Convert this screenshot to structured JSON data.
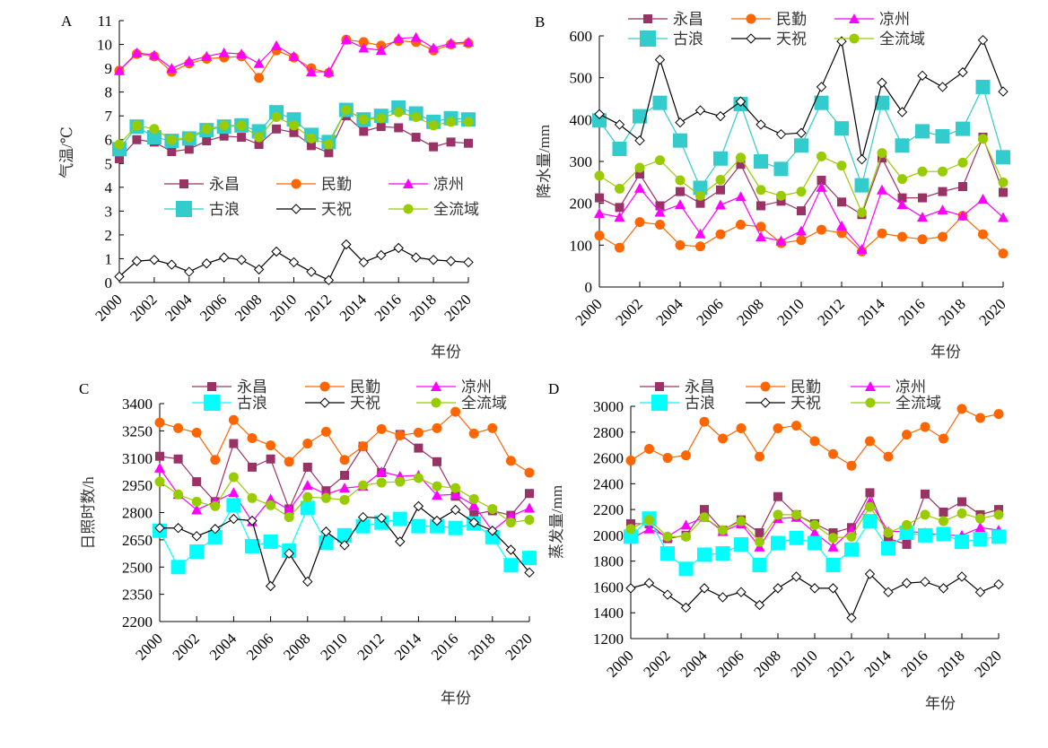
{
  "chart_data": [
    {
      "type": "line",
      "panel": "A",
      "title": "",
      "xlabel": "年份",
      "ylabel": "气温/℃",
      "ylim": [
        0,
        11
      ],
      "yticks": [
        0,
        1,
        2,
        3,
        4,
        5,
        6,
        7,
        8,
        9,
        10,
        11
      ],
      "x": [
        2000,
        2001,
        2002,
        2003,
        2004,
        2005,
        2006,
        2007,
        2008,
        2009,
        2010,
        2011,
        2012,
        2013,
        2014,
        2015,
        2016,
        2017,
        2018,
        2019,
        2020
      ],
      "xticks": [
        2000,
        2002,
        2004,
        2006,
        2008,
        2010,
        2012,
        2014,
        2016,
        2018,
        2020
      ],
      "legend": "center",
      "grid": false,
      "series": [
        {
          "name": "永昌",
          "values": [
            5.2,
            6.0,
            5.9,
            5.5,
            5.6,
            5.95,
            6.15,
            6.1,
            5.8,
            6.45,
            6.3,
            5.75,
            5.45,
            7.0,
            6.35,
            6.55,
            6.5,
            6.1,
            5.7,
            5.9,
            5.85
          ]
        },
        {
          "name": "民勤",
          "values": [
            8.9,
            9.6,
            9.5,
            8.85,
            9.2,
            9.4,
            9.45,
            9.5,
            8.6,
            9.75,
            9.45,
            9.0,
            8.8,
            10.2,
            10.1,
            9.95,
            10.15,
            10.1,
            9.75,
            10.0,
            10.05
          ]
        },
        {
          "name": "凉州",
          "values": [
            8.9,
            9.65,
            9.55,
            9.0,
            9.3,
            9.5,
            9.65,
            9.6,
            9.2,
            9.95,
            9.5,
            8.85,
            8.85,
            10.2,
            9.85,
            9.75,
            10.25,
            10.3,
            9.85,
            10.05,
            10.1
          ]
        },
        {
          "name": "古浪",
          "values": [
            5.6,
            6.55,
            6.1,
            5.95,
            6.05,
            6.4,
            6.55,
            6.6,
            6.35,
            7.15,
            6.85,
            6.2,
            5.9,
            7.25,
            6.85,
            7.0,
            7.35,
            7.1,
            6.75,
            6.9,
            6.85
          ]
        },
        {
          "name": "天祝",
          "values": [
            0.25,
            0.9,
            0.95,
            0.75,
            0.45,
            0.8,
            1.05,
            0.95,
            0.55,
            1.3,
            0.85,
            0.45,
            0.1,
            1.6,
            0.85,
            1.15,
            1.45,
            1.05,
            0.95,
            0.9,
            0.85
          ]
        },
        {
          "name": "全流域",
          "values": [
            5.8,
            6.6,
            6.45,
            6.0,
            6.1,
            6.45,
            6.6,
            6.6,
            6.1,
            6.95,
            6.6,
            6.05,
            5.8,
            7.25,
            6.85,
            6.9,
            7.15,
            6.95,
            6.6,
            6.75,
            6.75
          ]
        }
      ]
    },
    {
      "type": "line",
      "panel": "B",
      "title": "",
      "xlabel": "年份",
      "ylabel": "降水量/mm",
      "ylim": [
        0,
        600
      ],
      "yticks": [
        0,
        100,
        200,
        300,
        400,
        500,
        600
      ],
      "x": [
        2000,
        2001,
        2002,
        2003,
        2004,
        2005,
        2006,
        2007,
        2008,
        2009,
        2010,
        2011,
        2012,
        2013,
        2014,
        2015,
        2016,
        2017,
        2018,
        2019,
        2020
      ],
      "xticks": [
        2000,
        2002,
        2004,
        2006,
        2008,
        2010,
        2012,
        2014,
        2016,
        2018,
        2020
      ],
      "legend": "top",
      "grid": false,
      "series": [
        {
          "name": "永昌",
          "values": [
            213,
            190,
            270,
            194,
            228,
            200,
            232,
            293,
            194,
            205,
            182,
            255,
            203,
            173,
            308,
            213,
            213,
            228,
            240,
            358,
            226
          ]
        },
        {
          "name": "民勤",
          "values": [
            123,
            94,
            155,
            149,
            100,
            97,
            126,
            149,
            144,
            105,
            112,
            137,
            129,
            85,
            128,
            120,
            114,
            120,
            170,
            126,
            80
          ]
        },
        {
          "name": "凉州",
          "values": [
            176,
            167,
            236,
            179,
            197,
            127,
            196,
            216,
            120,
            110,
            134,
            238,
            146,
            90,
            232,
            197,
            167,
            184,
            170,
            210,
            166
          ]
        },
        {
          "name": "古浪",
          "values": [
            398,
            330,
            408,
            440,
            350,
            237,
            307,
            437,
            300,
            282,
            338,
            440,
            379,
            243,
            440,
            338,
            372,
            360,
            378,
            478,
            310
          ]
        },
        {
          "name": "天祝",
          "values": [
            413,
            388,
            350,
            543,
            393,
            422,
            408,
            443,
            388,
            365,
            368,
            478,
            587,
            305,
            488,
            418,
            505,
            478,
            513,
            590,
            467
          ]
        },
        {
          "name": "全流域",
          "values": [
            266,
            235,
            285,
            303,
            255,
            218,
            256,
            309,
            232,
            218,
            228,
            312,
            290,
            178,
            320,
            258,
            276,
            276,
            297,
            354,
            250
          ]
        }
      ]
    },
    {
      "type": "line",
      "panel": "C",
      "title": "",
      "xlabel": "年份",
      "ylabel": "日照时数/h",
      "ylim": [
        2200,
        3400
      ],
      "yticks": [
        2200,
        2350,
        2500,
        2650,
        2800,
        2950,
        3100,
        3250,
        3400
      ],
      "x": [
        2000,
        2001,
        2002,
        2003,
        2004,
        2005,
        2006,
        2007,
        2008,
        2009,
        2010,
        2011,
        2012,
        2013,
        2014,
        2015,
        2016,
        2017,
        2018,
        2019,
        2020
      ],
      "xticks": [
        2000,
        2002,
        2004,
        2006,
        2008,
        2010,
        2012,
        2014,
        2016,
        2018,
        2020
      ],
      "legend": "top",
      "grid": false,
      "series": [
        {
          "name": "永昌",
          "values": [
            3110,
            3095,
            2970,
            2860,
            3180,
            3050,
            3095,
            2820,
            3050,
            2920,
            3005,
            3165,
            3020,
            3230,
            3155,
            3080,
            2890,
            2790,
            2810,
            2785,
            2905
          ]
        },
        {
          "name": "民勤",
          "values": [
            3295,
            3265,
            3240,
            3090,
            3310,
            3210,
            3170,
            3080,
            3180,
            3245,
            3090,
            3165,
            3260,
            3225,
            3240,
            3265,
            3355,
            3235,
            3265,
            3085,
            3020
          ]
        },
        {
          "name": "凉州",
          "values": [
            3045,
            2900,
            2815,
            2860,
            2910,
            2750,
            2875,
            2815,
            2950,
            2900,
            2935,
            2945,
            3025,
            3000,
            3005,
            2895,
            2900,
            2840,
            2700,
            2780,
            2825
          ]
        },
        {
          "name": "古浪",
          "values": [
            2700,
            2500,
            2585,
            2665,
            2840,
            2615,
            2640,
            2590,
            2825,
            2635,
            2675,
            2725,
            2745,
            2765,
            2725,
            2725,
            2715,
            2740,
            2665,
            2510,
            2550
          ]
        },
        {
          "name": "天祝",
          "values": [
            2715,
            2715,
            2670,
            2710,
            2765,
            2755,
            2395,
            2575,
            2420,
            2695,
            2620,
            2775,
            2770,
            2640,
            2835,
            2755,
            2815,
            2745,
            2700,
            2595,
            2470
          ]
        },
        {
          "name": "全流域",
          "values": [
            2970,
            2900,
            2860,
            2835,
            2995,
            2880,
            2840,
            2775,
            2885,
            2880,
            2870,
            2950,
            2965,
            2970,
            2990,
            2945,
            2935,
            2875,
            2820,
            2745,
            2760
          ]
        }
      ]
    },
    {
      "type": "line",
      "panel": "D",
      "title": "",
      "xlabel": "年份",
      "ylabel": "蒸发量/mm",
      "ylim": [
        1200,
        3000
      ],
      "yticks": [
        1200,
        1400,
        1600,
        1800,
        2000,
        2200,
        2400,
        2600,
        2800,
        3000
      ],
      "x": [
        2000,
        2001,
        2002,
        2003,
        2004,
        2005,
        2006,
        2007,
        2008,
        2009,
        2010,
        2011,
        2012,
        2013,
        2014,
        2015,
        2016,
        2017,
        2018,
        2019,
        2020
      ],
      "xticks": [
        2000,
        2002,
        2004,
        2006,
        2008,
        2010,
        2012,
        2014,
        2016,
        2018,
        2020
      ],
      "legend": "top",
      "grid": false,
      "series": [
        {
          "name": "永昌",
          "values": [
            2090,
            2090,
            1975,
            2000,
            2200,
            2040,
            2120,
            2020,
            2300,
            2160,
            2090,
            2020,
            2060,
            2330,
            1975,
            1930,
            2320,
            2180,
            2260,
            2160,
            2200
          ]
        },
        {
          "name": "民勤",
          "values": [
            2580,
            2670,
            2600,
            2620,
            2880,
            2750,
            2830,
            2610,
            2830,
            2850,
            2730,
            2630,
            2540,
            2730,
            2610,
            2780,
            2840,
            2750,
            2980,
            2910,
            2940
          ]
        },
        {
          "name": "凉州",
          "values": [
            1970,
            2050,
            1990,
            2080,
            2140,
            2030,
            2090,
            1910,
            2130,
            2140,
            2020,
            1910,
            2040,
            2260,
            2030,
            2030,
            2020,
            2000,
            2000,
            2060,
            2040
          ]
        },
        {
          "name": "古浪",
          "values": [
            1990,
            2130,
            1860,
            1740,
            1850,
            1860,
            1930,
            1770,
            1940,
            1980,
            1940,
            1770,
            1890,
            2110,
            1900,
            2020,
            2000,
            2010,
            1950,
            1970,
            1990
          ]
        },
        {
          "name": "天祝",
          "values": [
            1590,
            1630,
            1540,
            1440,
            1590,
            1520,
            1560,
            1460,
            1590,
            1680,
            1590,
            1590,
            1360,
            1700,
            1560,
            1630,
            1640,
            1590,
            1680,
            1560,
            1620
          ]
        },
        {
          "name": "全流域",
          "values": [
            2050,
            2120,
            1990,
            1990,
            2140,
            2040,
            2110,
            1950,
            2160,
            2160,
            2080,
            1980,
            1990,
            2220,
            2020,
            2080,
            2160,
            2110,
            2170,
            2130,
            2160
          ]
        }
      ]
    }
  ],
  "series_styles": [
    {
      "name": "永昌",
      "color": "#993366",
      "marker": "square"
    },
    {
      "name": "民勤",
      "color": "#FF6600",
      "marker": "circle"
    },
    {
      "name": "凉州",
      "color": "#FF00FF",
      "marker": "triangle"
    },
    {
      "name": "古浪",
      "color": "#33CCCC",
      "color_cd": "#00FFFF",
      "marker": "bigsquare"
    },
    {
      "name": "天祝",
      "color": "#000000",
      "marker": "diamond"
    },
    {
      "name": "全流域",
      "color": "#99CC00",
      "marker": "circle"
    }
  ],
  "panels": {
    "A": {
      "label": "A"
    },
    "B": {
      "label": "B"
    },
    "C": {
      "label": "C"
    },
    "D": {
      "label": "D"
    }
  }
}
